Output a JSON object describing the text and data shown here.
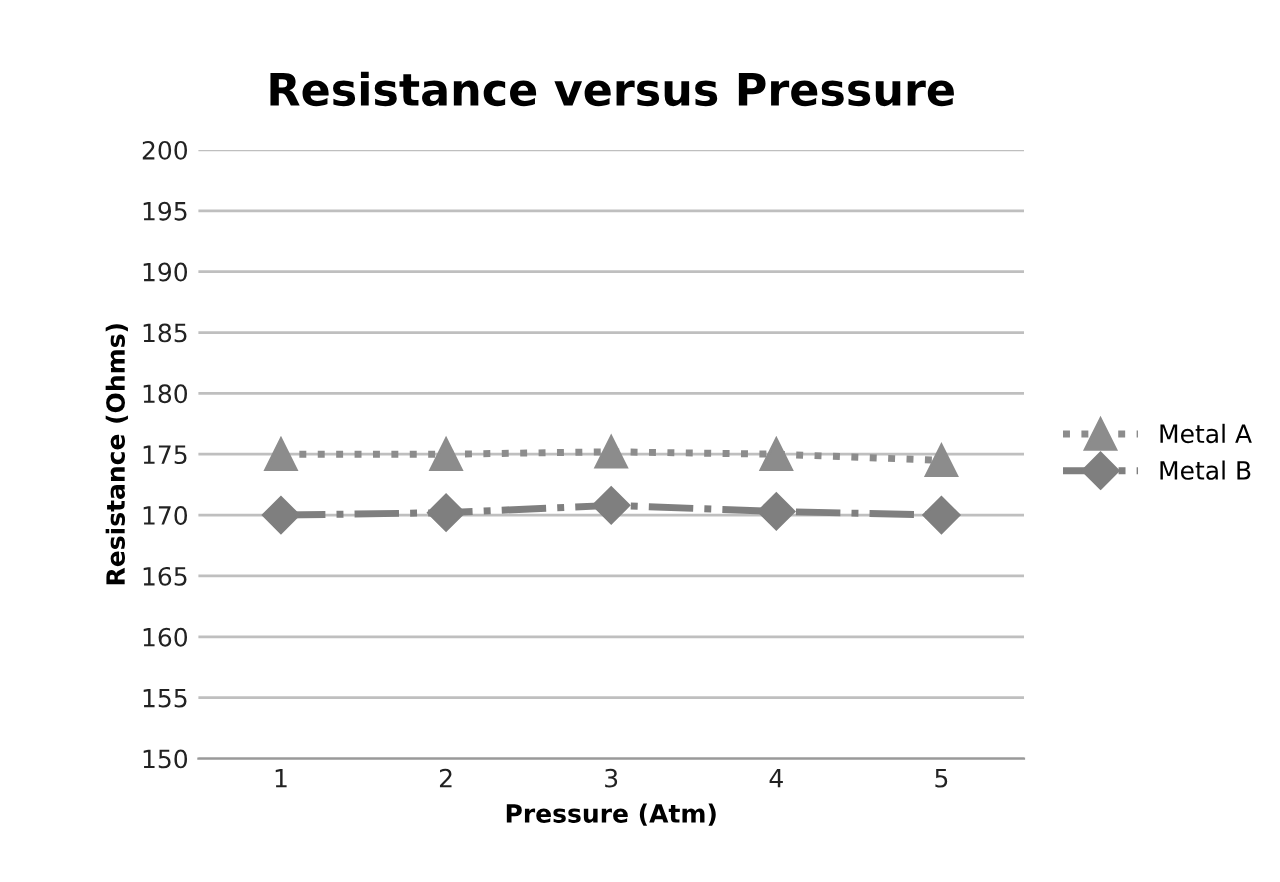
{
  "chart_data": {
    "type": "line",
    "title": "Resistance versus Pressure",
    "xlabel": "Pressure (Atm)",
    "ylabel": "Resistance (Ohms)",
    "categories": [
      "1",
      "2",
      "3",
      "4",
      "5"
    ],
    "series": [
      {
        "name": "Metal A",
        "color": "#8c8c8c",
        "values": [
          175,
          175,
          175.2,
          175,
          174.5
        ],
        "marker": "triangle",
        "line_style": "dotted"
      },
      {
        "name": "Metal B",
        "color": "#7f7f7f",
        "values": [
          170,
          170.2,
          170.8,
          170.3,
          170
        ],
        "marker": "diamond",
        "line_style": "dashdot"
      }
    ],
    "ylim": [
      150,
      200
    ],
    "yticks": [
      150,
      155,
      160,
      165,
      170,
      175,
      180,
      185,
      190,
      195,
      200
    ],
    "grid": "y",
    "legend": "right"
  }
}
